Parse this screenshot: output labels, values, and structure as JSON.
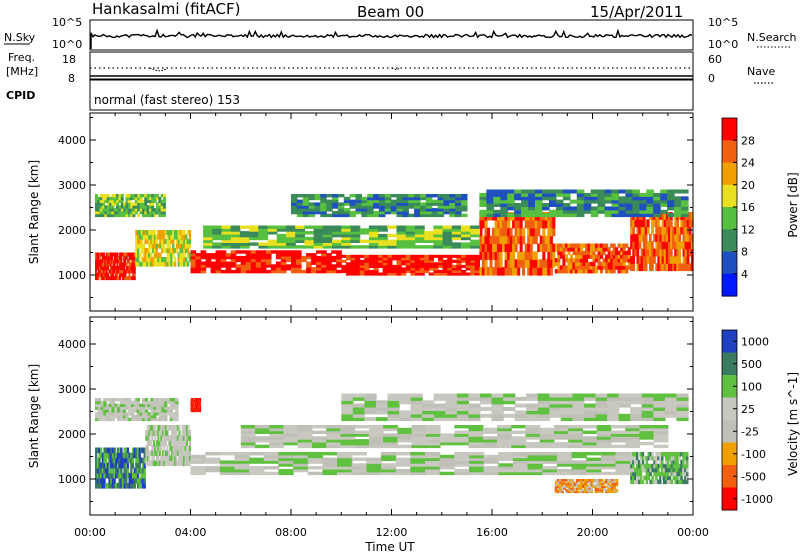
{
  "header": {
    "station": "Hankasalmi (fitACF)",
    "beam": "Beam 00",
    "date": "15/Apr/2011"
  },
  "sky_panel": {
    "left_label": "N.Sky",
    "left_ticks": [
      "10^5",
      "10^0"
    ],
    "right_ticks": [
      "10^5",
      "10^0"
    ],
    "right_label": "N.Search"
  },
  "freq_panel": {
    "left_label_line1": "Freq.",
    "left_label_line2": "[MHz]",
    "left_ticks": [
      "18",
      "8"
    ],
    "right_ticks": [
      "60",
      "0"
    ],
    "right_label": "Nave",
    "cpid_label": "CPID",
    "mode_text": "normal (fast stereo) 153"
  },
  "chart_data": [
    {
      "type": "heatmap",
      "name": "power",
      "ylabel": "Slant Range [km]",
      "ylim": [
        200,
        4600
      ],
      "yticks": [
        "1000",
        "2000",
        "3000",
        "4000"
      ],
      "xlim": [
        0,
        24
      ],
      "colorbar_label": "Power [dB]",
      "colorbar_ticks": [
        "4",
        "8",
        "12",
        "16",
        "20",
        "24",
        "28"
      ],
      "colors": [
        "#0018ff",
        "#2050c0",
        "#3a8a5a",
        "#58c040",
        "#e8e020",
        "#f0a000",
        "#f06010",
        "#ff0000"
      ],
      "bands": [
        {
          "t0": 0.2,
          "t1": 1.8,
          "r0": 900,
          "r1": 1500,
          "level": 7
        },
        {
          "t0": 1.8,
          "t1": 4.0,
          "r0": 1200,
          "r1": 2000,
          "level": 4
        },
        {
          "t0": 4.0,
          "t1": 10.0,
          "r0": 1050,
          "r1": 1550,
          "level": 7
        },
        {
          "t0": 10.0,
          "t1": 15.5,
          "r0": 1000,
          "r1": 1450,
          "level": 7
        },
        {
          "t0": 15.5,
          "t1": 18.5,
          "r0": 1000,
          "r1": 2400,
          "level": 6
        },
        {
          "t0": 18.5,
          "t1": 21.5,
          "r0": 1050,
          "r1": 1700,
          "level": 6
        },
        {
          "t0": 21.5,
          "t1": 24.0,
          "r0": 1100,
          "r1": 2400,
          "level": 6
        },
        {
          "t0": 0.2,
          "t1": 3.0,
          "r0": 2300,
          "r1": 2800,
          "level": 3
        },
        {
          "t0": 4.5,
          "t1": 15.5,
          "r0": 1600,
          "r1": 2100,
          "level": 3
        },
        {
          "t0": 15.5,
          "t1": 23.8,
          "r0": 2300,
          "r1": 2900,
          "level": 2
        },
        {
          "t0": 8.0,
          "t1": 15.0,
          "r0": 2300,
          "r1": 2800,
          "level": 2
        }
      ]
    },
    {
      "type": "heatmap",
      "name": "velocity",
      "ylabel": "Slant Range [km]",
      "ylim": [
        200,
        4600
      ],
      "yticks": [
        "1000",
        "2000",
        "3000",
        "4000"
      ],
      "xlim": [
        0,
        24
      ],
      "xticks": [
        "00:00",
        "04:00",
        "08:00",
        "12:00",
        "16:00",
        "20:00",
        "00:00"
      ],
      "xlabel": "Time UT",
      "colorbar_label": "Velocity [m s^-1]",
      "colorbar_ticks": [
        "1000",
        "500",
        "100",
        "25",
        "-25",
        "-100",
        "-500",
        "-1000"
      ],
      "colors": [
        "#2040c0",
        "#3a7a60",
        "#60c040",
        "#c8c8c0",
        "#c0c0b8",
        "#f0a000",
        "#f06010",
        "#ff0000"
      ],
      "bands": [
        {
          "t0": 0.2,
          "t1": 2.2,
          "r0": 800,
          "r1": 1700,
          "level": 1
        },
        {
          "t0": 2.2,
          "t1": 4.0,
          "r0": 1300,
          "r1": 2200,
          "level": 3
        },
        {
          "t0": 4.0,
          "t1": 21.5,
          "r0": 1100,
          "r1": 1600,
          "level": 3
        },
        {
          "t0": 6.0,
          "t1": 23.0,
          "r0": 1700,
          "r1": 2200,
          "level": 3
        },
        {
          "t0": 10.0,
          "t1": 23.8,
          "r0": 2300,
          "r1": 2900,
          "level": 3
        },
        {
          "t0": 0.2,
          "t1": 3.5,
          "r0": 2300,
          "r1": 2800,
          "level": 3
        },
        {
          "t0": 21.5,
          "t1": 23.8,
          "r0": 900,
          "r1": 1600,
          "level": 2
        },
        {
          "t0": 18.5,
          "t1": 21.0,
          "r0": 700,
          "r1": 1000,
          "level": 5
        },
        {
          "t0": 4.0,
          "t1": 4.4,
          "r0": 2500,
          "r1": 2800,
          "level": 7
        }
      ]
    }
  ]
}
